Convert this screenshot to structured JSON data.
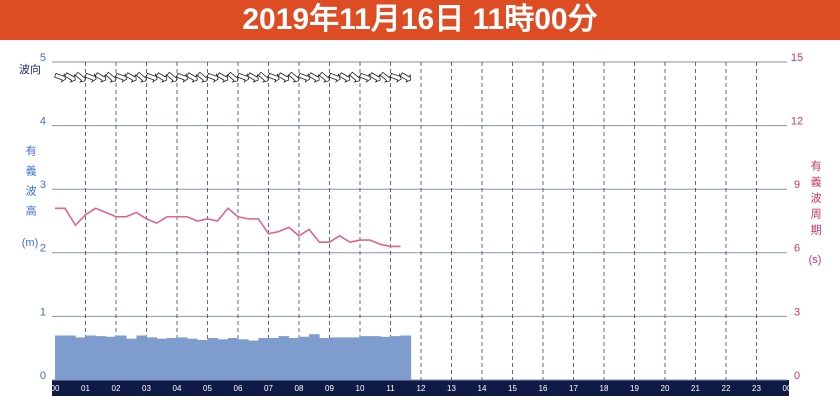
{
  "chart_data": {
    "type": "bar-line",
    "title": "2019年11月16日 11時00分",
    "direction_label": "波向",
    "y_label": "有義波高",
    "y_unit": "(m)",
    "y2_label": "有義波周期",
    "y2_unit": "(s)",
    "xlim": [
      0,
      24
    ],
    "xticks": [
      {
        "value": 0,
        "label": "00"
      },
      {
        "value": 1,
        "label": "01"
      },
      {
        "value": 2,
        "label": "02"
      },
      {
        "value": 3,
        "label": "03"
      },
      {
        "value": 4,
        "label": "04"
      },
      {
        "value": 5,
        "label": "05"
      },
      {
        "value": 6,
        "label": "06"
      },
      {
        "value": 7,
        "label": "07"
      },
      {
        "value": 8,
        "label": "08"
      },
      {
        "value": 9,
        "label": "09"
      },
      10,
      11,
      12,
      13,
      14,
      15,
      16,
      17,
      18,
      19,
      20,
      21,
      22,
      23,
      {
        "value": 24,
        "label": "00"
      }
    ],
    "ylim": [
      0,
      5
    ],
    "yticks": [
      0,
      1,
      2,
      3,
      4,
      5
    ],
    "y2lim": [
      0,
      15
    ],
    "y2ticks": [
      0,
      3,
      6,
      9,
      12,
      15
    ],
    "x": [
      0,
      0.33,
      0.67,
      1,
      1.33,
      1.67,
      2,
      2.33,
      2.67,
      3,
      3.33,
      3.67,
      4,
      4.33,
      4.67,
      5,
      5.33,
      5.67,
      6,
      6.33,
      6.67,
      7,
      7.33,
      7.67,
      8,
      8.33,
      8.67,
      9,
      9.33,
      9.67,
      10,
      10.33,
      10.67,
      11,
      11.33
    ],
    "series": [
      {
        "name": "有義波高",
        "type": "bar",
        "color": "#7f9ccf",
        "values": [
          0.7,
          0.7,
          0.67,
          0.7,
          0.69,
          0.68,
          0.7,
          0.65,
          0.7,
          0.67,
          0.65,
          0.66,
          0.67,
          0.65,
          0.63,
          0.66,
          0.64,
          0.66,
          0.64,
          0.62,
          0.66,
          0.66,
          0.69,
          0.66,
          0.68,
          0.72,
          0.66,
          0.67,
          0.67,
          0.67,
          0.69,
          0.69,
          0.68,
          0.69,
          0.7
        ]
      },
      {
        "name": "有義波周期",
        "type": "line",
        "axis": "y2",
        "color": "#e0638f",
        "values": [
          8.1,
          8.1,
          7.3,
          7.8,
          8.1,
          7.9,
          7.7,
          7.7,
          7.9,
          7.6,
          7.4,
          7.7,
          7.7,
          7.7,
          7.5,
          7.6,
          7.5,
          8.1,
          7.7,
          7.6,
          7.6,
          6.9,
          7.0,
          7.2,
          6.8,
          7.1,
          6.5,
          6.5,
          6.8,
          6.5,
          6.6,
          6.6,
          6.4,
          6.3,
          6.3
        ]
      }
    ]
  }
}
